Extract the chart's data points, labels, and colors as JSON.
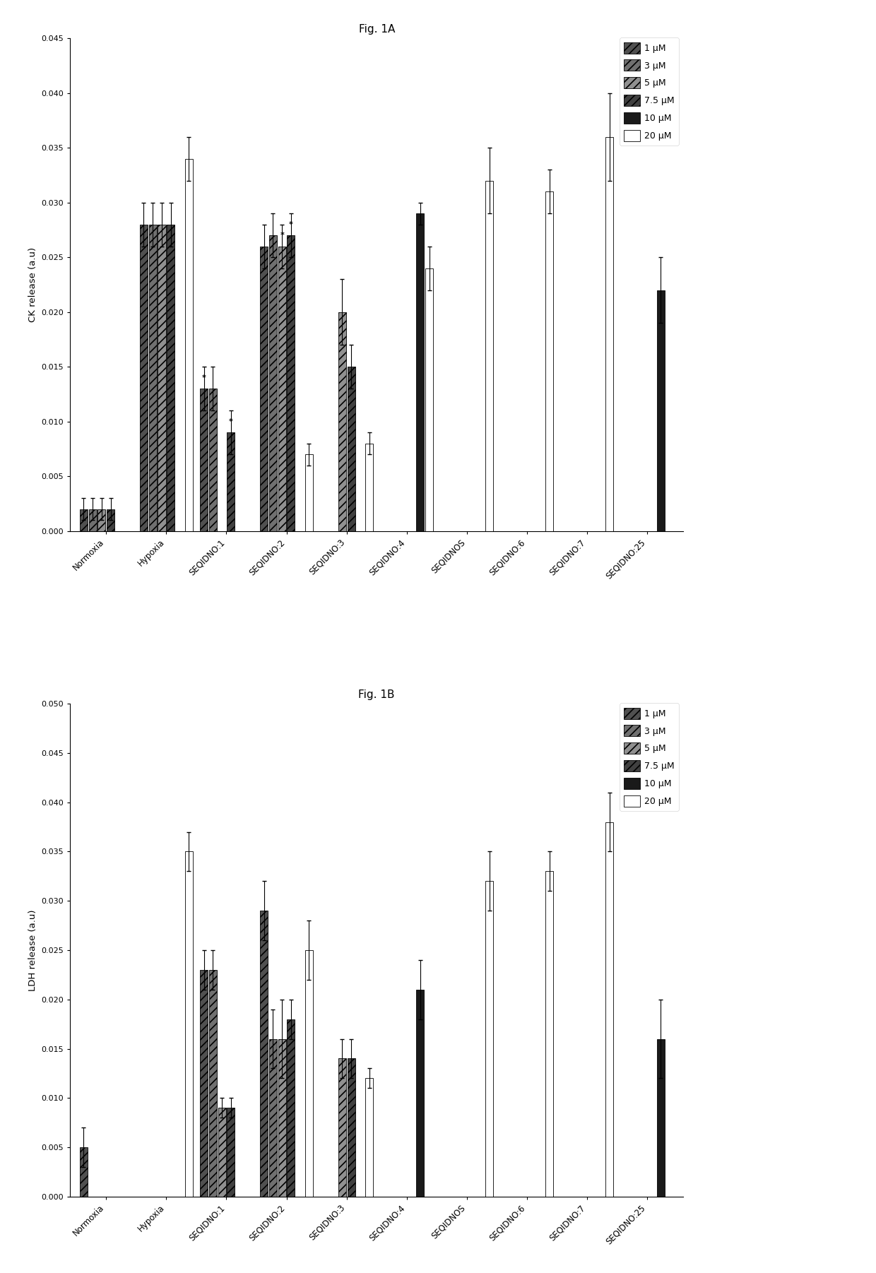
{
  "fig_title_a": "Fig. 1A",
  "fig_title_b": "Fig. 1B",
  "ylabel_a": "CK release (a.u)",
  "ylabel_b": "LDH release (a.u)",
  "categories": [
    "Normoxia",
    "Hypoxia",
    "SEQIDNO:1",
    "SEQIDNO:2",
    "SEQIDNO:3",
    "SEQIDNO:4",
    "SEQIDNOS",
    "SEQIDNO:6",
    "SEQIDNO:7",
    "SEQIDNO:25"
  ],
  "legend_labels": [
    "1 μM",
    "3 μM",
    "5 μM",
    "7.5 μM",
    "10 μM",
    "20 μM"
  ],
  "ylim_a": [
    0,
    0.045
  ],
  "ylim_b": [
    0,
    0.05
  ],
  "yticks_a": [
    0,
    0.005,
    0.01,
    0.015,
    0.02,
    0.025,
    0.03,
    0.035,
    0.04,
    0.045
  ],
  "yticks_b": [
    0,
    0.005,
    0.01,
    0.015,
    0.02,
    0.025,
    0.03,
    0.035,
    0.04,
    0.045,
    0.05
  ],
  "data_a": {
    "Normoxia": [
      0.002,
      0.002,
      0.002,
      0.002,
      null,
      null
    ],
    "Hypoxia": [
      0.028,
      0.028,
      0.028,
      0.028,
      null,
      0.034
    ],
    "SEQIDNO:1": [
      0.013,
      0.013,
      null,
      0.009,
      null,
      null
    ],
    "SEQIDNO:2": [
      0.026,
      0.027,
      0.026,
      0.027,
      null,
      0.007
    ],
    "SEQIDNO:3": [
      null,
      null,
      0.02,
      0.015,
      null,
      0.008
    ],
    "SEQIDNO:4": [
      null,
      null,
      null,
      null,
      0.029,
      0.024
    ],
    "SEQIDNOS": [
      null,
      null,
      null,
      null,
      null,
      0.032
    ],
    "SEQIDNO:6": [
      null,
      null,
      null,
      null,
      null,
      0.031
    ],
    "SEQIDNO:7": [
      null,
      null,
      null,
      null,
      null,
      0.036
    ],
    "SEQIDNO:25": [
      null,
      null,
      null,
      null,
      0.022,
      null
    ]
  },
  "err_a": {
    "Normoxia": [
      0.001,
      0.001,
      0.001,
      0.001,
      null,
      null
    ],
    "Hypoxia": [
      0.002,
      0.002,
      0.002,
      0.002,
      null,
      0.002
    ],
    "SEQIDNO:1": [
      0.002,
      0.002,
      null,
      0.002,
      null,
      null
    ],
    "SEQIDNO:2": [
      0.002,
      0.002,
      0.002,
      0.002,
      null,
      0.001
    ],
    "SEQIDNO:3": [
      null,
      null,
      0.003,
      0.002,
      null,
      0.001
    ],
    "SEQIDNO:4": [
      null,
      null,
      null,
      null,
      0.001,
      0.002
    ],
    "SEQIDNOS": [
      null,
      null,
      null,
      null,
      null,
      0.003
    ],
    "SEQIDNO:6": [
      null,
      null,
      null,
      null,
      null,
      0.002
    ],
    "SEQIDNO:7": [
      null,
      null,
      null,
      null,
      null,
      0.004
    ],
    "SEQIDNO:25": [
      null,
      null,
      null,
      null,
      0.003,
      null
    ]
  },
  "data_b": {
    "Normoxia": [
      0.005,
      null,
      null,
      null,
      null,
      null
    ],
    "Hypoxia": [
      null,
      null,
      null,
      null,
      null,
      0.035
    ],
    "SEQIDNO:1": [
      0.023,
      0.023,
      0.009,
      0.009,
      null,
      null
    ],
    "SEQIDNO:2": [
      0.029,
      0.016,
      0.016,
      0.018,
      null,
      0.025
    ],
    "SEQIDNO:3": [
      null,
      null,
      0.014,
      0.014,
      null,
      0.012
    ],
    "SEQIDNO:4": [
      null,
      null,
      null,
      null,
      0.021,
      null
    ],
    "SEQIDNOS": [
      null,
      null,
      null,
      null,
      null,
      0.032
    ],
    "SEQIDNO:6": [
      null,
      null,
      null,
      null,
      null,
      0.033
    ],
    "SEQIDNO:7": [
      null,
      null,
      null,
      null,
      null,
      0.038
    ],
    "SEQIDNO:25": [
      null,
      null,
      null,
      null,
      0.016,
      null
    ]
  },
  "err_b": {
    "Normoxia": [
      0.002,
      null,
      null,
      null,
      null,
      null
    ],
    "Hypoxia": [
      null,
      null,
      null,
      null,
      null,
      0.002
    ],
    "SEQIDNO:1": [
      0.002,
      0.002,
      0.001,
      0.001,
      null,
      null
    ],
    "SEQIDNO:2": [
      0.003,
      0.003,
      0.004,
      0.002,
      null,
      0.003
    ],
    "SEQIDNO:3": [
      null,
      null,
      0.002,
      0.002,
      null,
      0.001
    ],
    "SEQIDNO:4": [
      null,
      null,
      null,
      null,
      0.003,
      null
    ],
    "SEQIDNOS": [
      null,
      null,
      null,
      null,
      null,
      0.003
    ],
    "SEQIDNO:6": [
      null,
      null,
      null,
      null,
      null,
      0.002
    ],
    "SEQIDNO:7": [
      null,
      null,
      null,
      null,
      null,
      0.003
    ],
    "SEQIDNO:25": [
      null,
      null,
      null,
      null,
      0.004,
      null
    ]
  },
  "background_color": "#ffffff",
  "annotations_a": {
    "SEQIDNO:1": [
      0,
      3
    ],
    "SEQIDNO:2": [
      2,
      3
    ]
  }
}
